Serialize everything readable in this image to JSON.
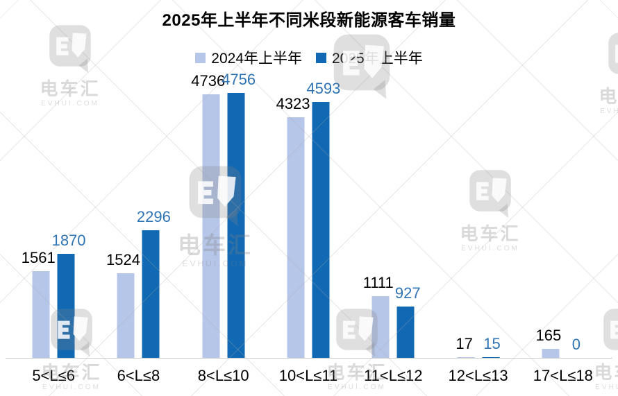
{
  "title": "2025年上半年不同米段新能源客车销量",
  "legend": [
    {
      "label": "2024年上半年",
      "color": "#b6c6e8"
    },
    {
      "label": "2025年上半年",
      "color": "#1169b4"
    }
  ],
  "colors": {
    "bar_2024": "#b6c6e8",
    "bar_2025": "#1169b4",
    "value_label_2024": "#000000",
    "value_label_2025": "#2e74b4",
    "axis_line": "#cccccc"
  },
  "watermark": {
    "brand": "电车汇",
    "domain": "EVHUI.COM"
  },
  "chart_data": {
    "type": "bar",
    "title": "2025年上半年不同米段新能源客车销量",
    "categories": [
      "5<L≤6",
      "6<L≤8",
      "8<L≤10",
      "10<L≤11",
      "11<L≤12",
      "12<L≤13",
      "17<L≤18"
    ],
    "series": [
      {
        "name": "2024年上半年",
        "values": [
          1561,
          1524,
          4736,
          4323,
          1111,
          17,
          165
        ]
      },
      {
        "name": "2025年上半年",
        "values": [
          1870,
          2296,
          4756,
          4593,
          927,
          15,
          0
        ]
      }
    ],
    "xlabel": "",
    "ylabel": "",
    "ylim": [
      0,
      4756
    ],
    "grid": false,
    "y_axis_visible": false,
    "legend_position": "top",
    "value_labels": true
  }
}
